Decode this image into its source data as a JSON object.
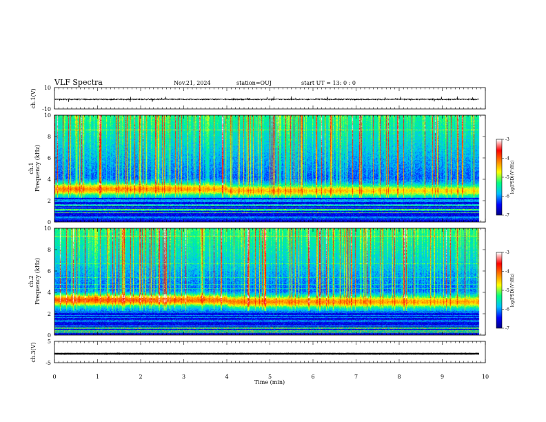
{
  "header": {
    "title": "VLF Spectra",
    "date": "Nov.21, 2024",
    "station": "station=OUJ",
    "start_ut": "start UT =  13: 0  : 0"
  },
  "chart_data": {
    "type": "heatmap",
    "xlabel": "Time (min)",
    "xlim": [
      0,
      10
    ],
    "x_ticks": [
      "0",
      "1",
      "2",
      "3",
      "4",
      "5",
      "6",
      "7",
      "8",
      "9",
      "10"
    ],
    "data_end_min": 9.85,
    "panels": [
      {
        "kind": "waveform",
        "ylabel": "ch.1(V)",
        "ylim": [
          -10,
          10
        ],
        "y_ticks": [
          "10",
          "-10"
        ],
        "trace_level": -1,
        "trace_amplitude": 1.5,
        "trace_color": "#000000"
      },
      {
        "kind": "spectrogram",
        "ylabel": "ch.1\nFrequency (kHz)",
        "ylim": [
          0,
          10
        ],
        "y_ticks": [
          "0",
          "2",
          "4",
          "6",
          "8",
          "10"
        ],
        "band_center_khz": 3.1,
        "colorbar": {
          "label": "log(PSD)(V²/Hz)",
          "range": [
            -7,
            -3
          ],
          "ticks": [
            "-3",
            "-4",
            "-5",
            "-6",
            "-7"
          ],
          "colormap": [
            "#00007f",
            "#0000ff",
            "#00bfff",
            "#00ff80",
            "#ffff00",
            "#ff8000",
            "#ff0000",
            "#ffffff"
          ]
        }
      },
      {
        "kind": "spectrogram",
        "ylabel": "ch.2\nFrequency (kHz)",
        "ylim": [
          0,
          10
        ],
        "y_ticks": [
          "0",
          "2",
          "4",
          "6",
          "8",
          "10"
        ],
        "band_center_khz": 3.3,
        "colorbar": {
          "label": "log(PSD)(V²/Hz)",
          "range": [
            -7,
            -3
          ],
          "ticks": [
            "-3",
            "-4",
            "-5",
            "-6",
            "-7"
          ],
          "colormap": [
            "#00007f",
            "#0000ff",
            "#00bfff",
            "#00ff80",
            "#ffff00",
            "#ff8000",
            "#ff0000",
            "#ffffff"
          ]
        }
      },
      {
        "kind": "waveform",
        "ylabel": "ch.3(V)",
        "ylim": [
          -5,
          5
        ],
        "y_ticks": [
          "5",
          "-5"
        ],
        "trace_level": -0.8,
        "trace_amplitude": 0.15,
        "trace_color": "#000000"
      }
    ]
  }
}
